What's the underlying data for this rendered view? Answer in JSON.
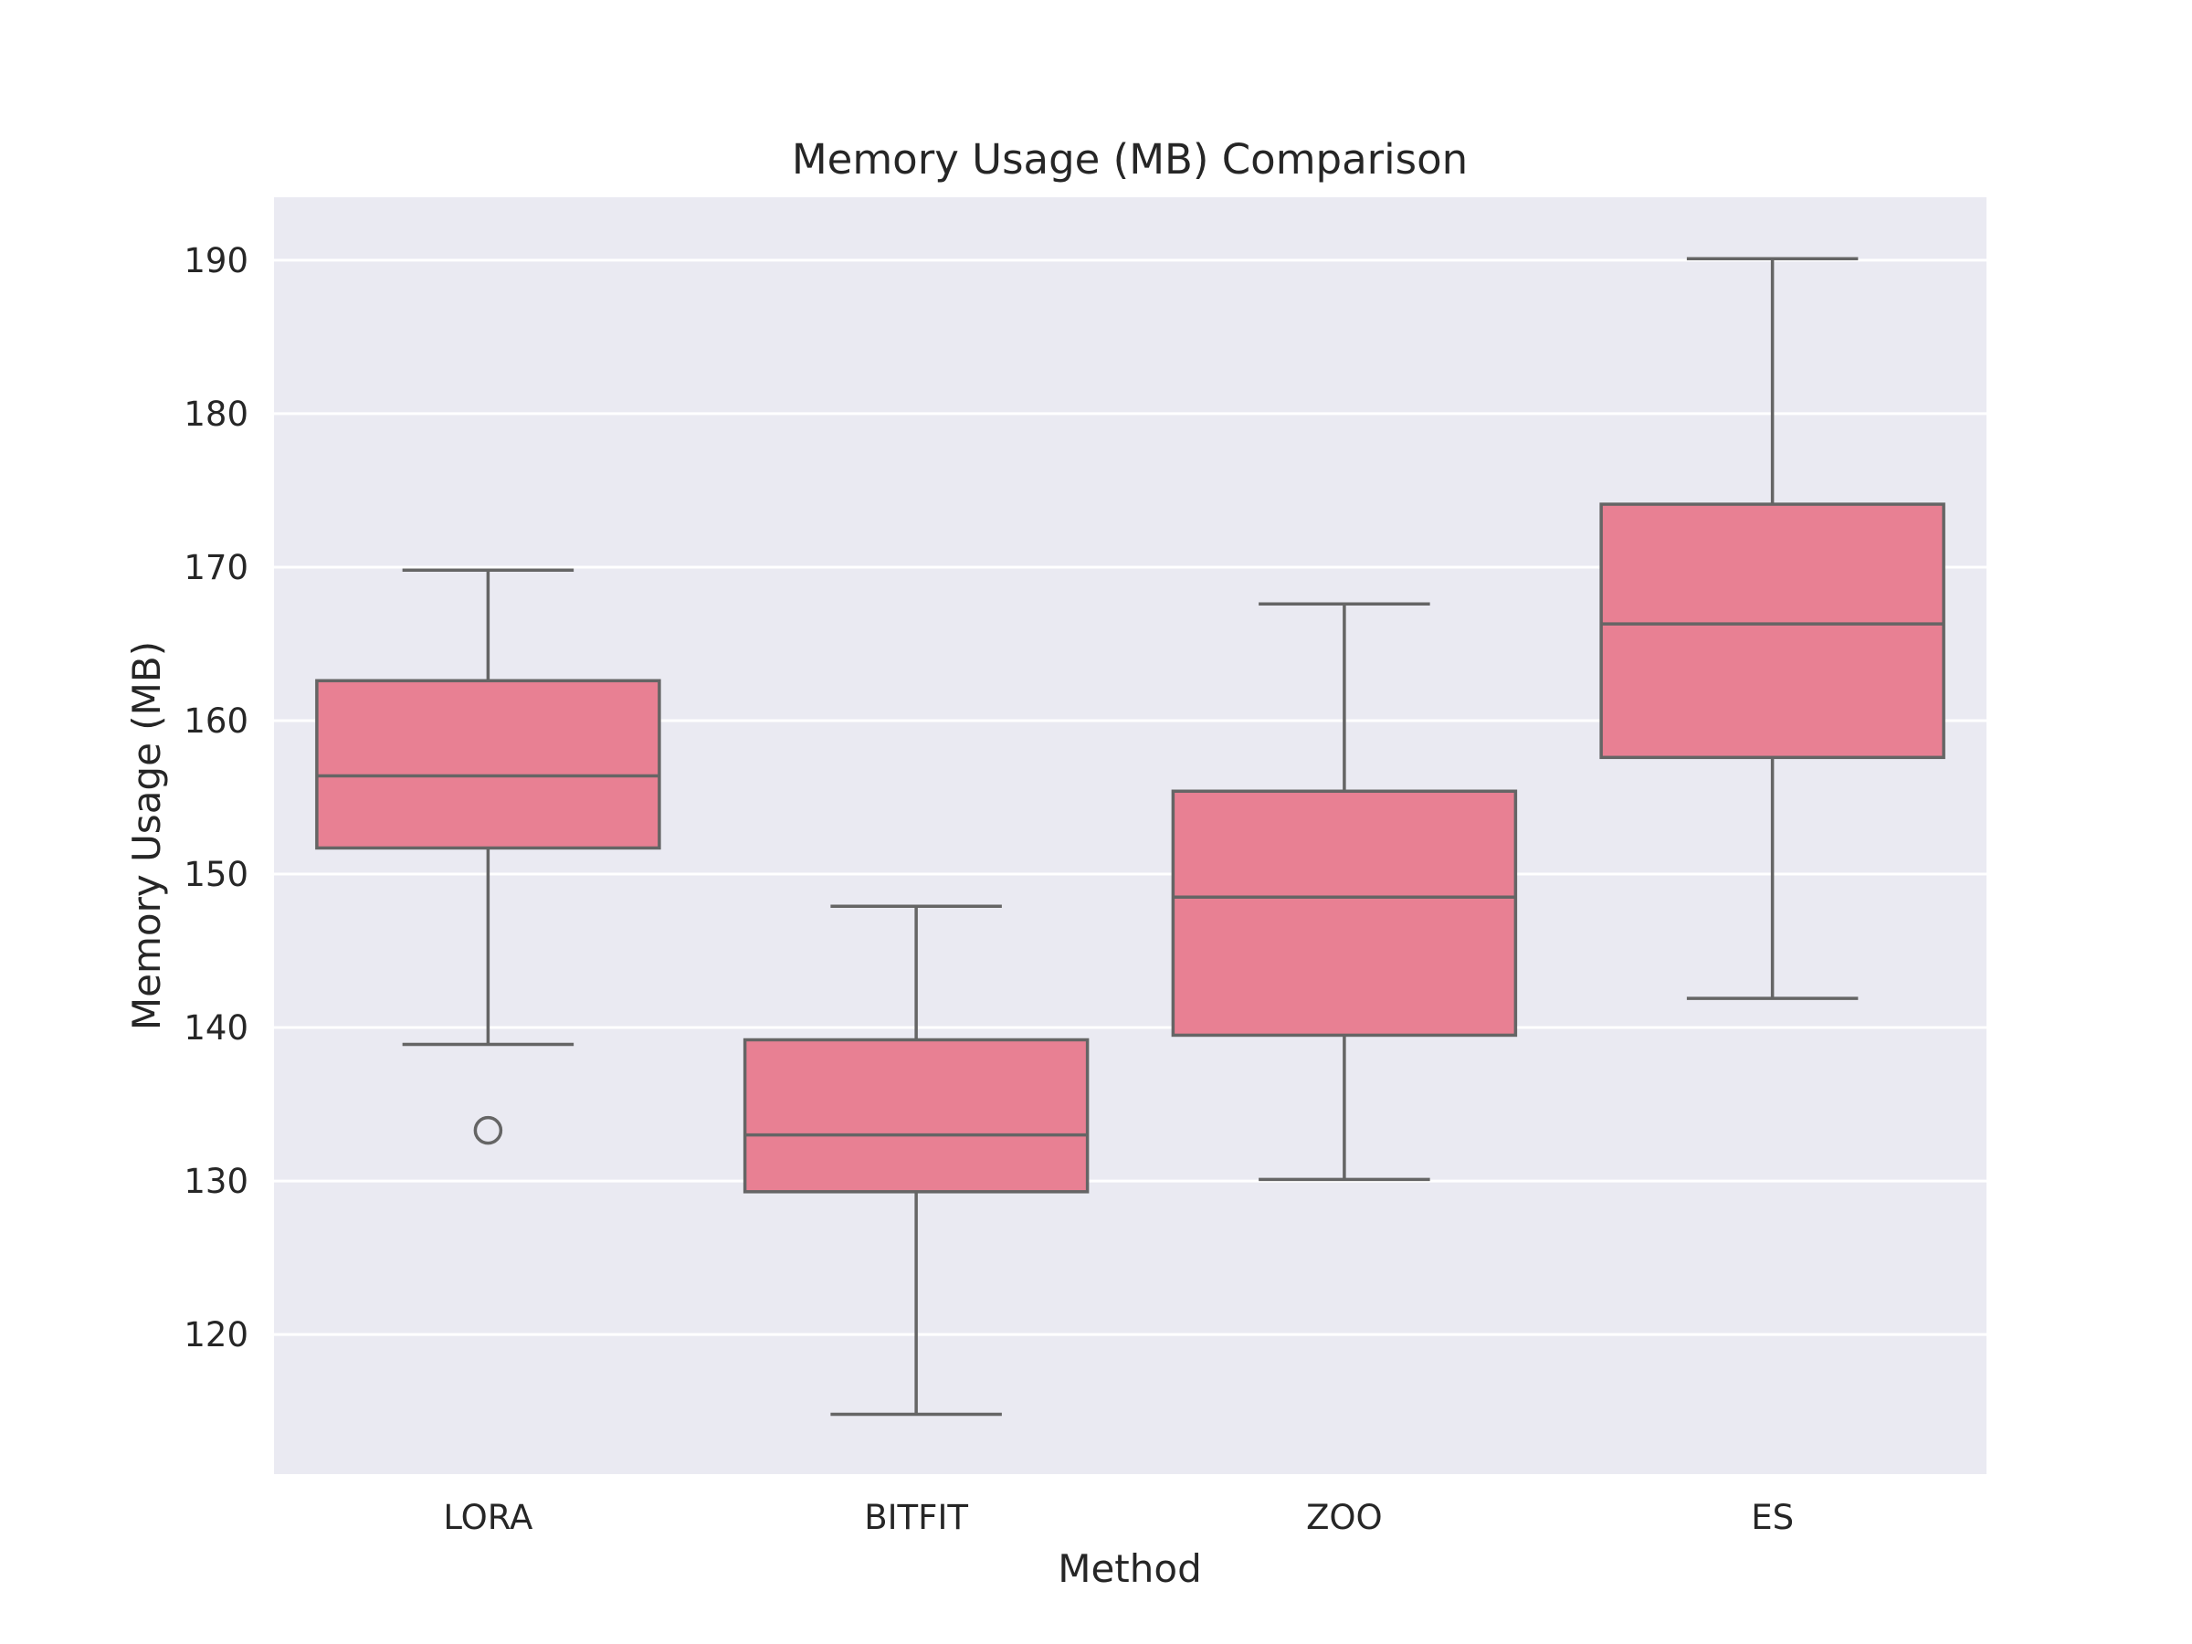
{
  "chart_data": {
    "type": "box",
    "title": "Memory Usage (MB) Comparison",
    "xlabel": "Method",
    "ylabel": "Memory Usage (MB)",
    "ylim": [
      110.9,
      194.1
    ],
    "yticks": [
      120,
      130,
      140,
      150,
      160,
      170,
      180,
      190
    ],
    "grid": true,
    "categories": [
      "LORA",
      "BITFIT",
      "ZOO",
      "ES"
    ],
    "boxes": [
      {
        "category": "LORA",
        "whisker_low": 138.9,
        "q1": 151.7,
        "median": 156.4,
        "q3": 162.6,
        "whisker_high": 169.8,
        "outliers": [
          133.3
        ]
      },
      {
        "category": "BITFIT",
        "whisker_low": 114.8,
        "q1": 129.3,
        "median": 133.0,
        "q3": 139.2,
        "whisker_high": 147.9,
        "outliers": []
      },
      {
        "category": "ZOO",
        "whisker_low": 130.1,
        "q1": 139.5,
        "median": 148.5,
        "q3": 155.4,
        "whisker_high": 167.6,
        "outliers": []
      },
      {
        "category": "ES",
        "whisker_low": 141.9,
        "q1": 157.6,
        "median": 166.3,
        "q3": 174.1,
        "whisker_high": 190.1,
        "outliers": []
      }
    ],
    "colors": {
      "box_fill": "#e88093",
      "line": "#656565",
      "plot_background": "#eaeaf2",
      "gridline": "#ffffff"
    }
  }
}
